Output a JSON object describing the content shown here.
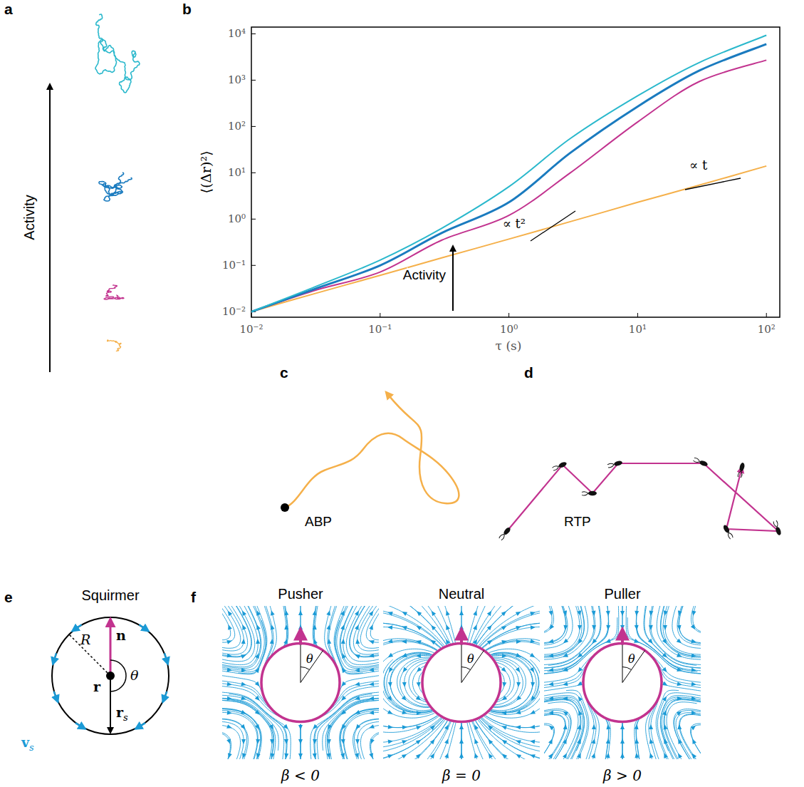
{
  "chart_data": {
    "type": "line",
    "xlabel": "τ (s)",
    "ylabel": "⟨(Δr)²⟩",
    "log": true,
    "grid": false,
    "xlim": [
      0.01,
      127
    ],
    "ylim": [
      0.0076,
      14000
    ],
    "xticks": [
      {
        "value": 0.01,
        "label": "10⁻²"
      },
      {
        "value": 0.1,
        "label": "10⁻¹"
      },
      {
        "value": 1,
        "label": "10⁰"
      },
      {
        "value": 10,
        "label": "10¹"
      },
      {
        "value": 100,
        "label": "10²"
      }
    ],
    "yticks": [
      {
        "value": 0.01,
        "label": "10⁻²"
      },
      {
        "value": 0.1,
        "label": "10⁻¹"
      },
      {
        "value": 1,
        "label": "10⁰"
      },
      {
        "value": 10,
        "label": "10¹"
      },
      {
        "value": 100,
        "label": "10²"
      },
      {
        "value": 1000,
        "label": "10³"
      },
      {
        "value": 10000,
        "label": "10⁴"
      }
    ],
    "x": [
      0.01,
      0.03,
      0.1,
      0.3,
      1,
      3,
      10,
      30,
      100
    ],
    "series": [
      {
        "color": "#f5b04a",
        "values": [
          0.01,
          0.024,
          0.061,
          0.145,
          0.37,
          0.88,
          2.3,
          5.4,
          14
        ]
      },
      {
        "color": "#c2338f",
        "values": [
          0.01,
          0.028,
          0.072,
          0.35,
          1.2,
          10,
          125,
          930,
          2700
        ]
      },
      {
        "color": "#1a7bbf",
        "values": [
          0.01,
          0.03,
          0.1,
          0.5,
          2.3,
          27,
          270,
          1600,
          6000
        ]
      },
      {
        "color": "#2ab8cc",
        "values": [
          0.01,
          0.033,
          0.13,
          0.63,
          5,
          55,
          460,
          2400,
          9300
        ]
      }
    ],
    "annotations": [
      "∝ t²",
      "∝ t",
      "Activity"
    ]
  },
  "panels": {
    "a": {
      "letter": "a",
      "label": "Activity"
    },
    "b": {
      "letter": "b"
    },
    "c": {
      "letter": "c",
      "label": "ABP"
    },
    "d": {
      "letter": "d",
      "label": "RTP"
    },
    "e": {
      "letter": "e",
      "title": "Squirmer",
      "n": "n",
      "R": "R",
      "theta": "θ",
      "r": "r",
      "r_s": {
        "base": "r",
        "sub": "s"
      },
      "v_s": {
        "base": "v",
        "sub": "s"
      }
    },
    "f": {
      "letter": "f",
      "theta": "θ",
      "items": [
        {
          "title": "Pusher",
          "beta": "β < 0"
        },
        {
          "title": "Neutral",
          "beta": "β = 0"
        },
        {
          "title": "Puller",
          "beta": "β > 0"
        }
      ]
    }
  }
}
